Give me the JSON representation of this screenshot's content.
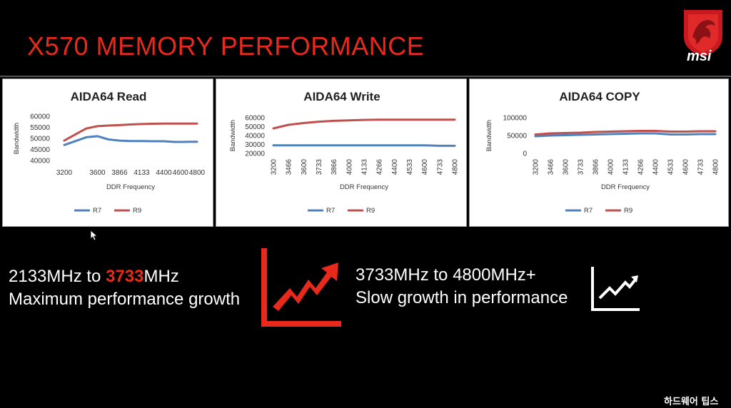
{
  "slide": {
    "title": "X570 MEMORY PERFORMANCE",
    "brand": "msi",
    "watermark": "하드웨어 팁스",
    "accent": "#e8291c"
  },
  "captions": {
    "left_line1_pre": "2133MHz to ",
    "left_line1_highlight": "3733",
    "left_line1_post": "MHz",
    "left_line2": "Maximum performance growth",
    "right_line1": "3733MHz to 4800MHz+",
    "right_line2": "Slow growth in performance"
  },
  "icons": {
    "growth": "red-rising-chart-arrow-icon",
    "slow": "white-rising-line-chart-icon"
  },
  "chart_data": [
    {
      "type": "line",
      "title": "AIDA64 Read",
      "xlabel": "DDR Frequency",
      "ylabel": "Bandwidth",
      "categories": [
        "3200",
        "3600",
        "3866",
        "4133",
        "4400",
        "4600",
        "4800"
      ],
      "x": [
        3200,
        3466,
        3600,
        3733,
        3866,
        4000,
        4133,
        4266,
        4400,
        4533,
        4600,
        4733,
        4800
      ],
      "series": [
        {
          "name": "R7",
          "color": "#4f81bd",
          "values": [
            47000,
            50500,
            51000,
            49500,
            49000,
            48800,
            48800,
            48700,
            48700,
            48400,
            48400,
            48500,
            48500
          ]
        },
        {
          "name": "R9",
          "color": "#c0504d",
          "values": [
            49000,
            54500,
            55500,
            55800,
            56000,
            56300,
            56500,
            56600,
            56700,
            56700,
            56700,
            56700,
            56700
          ]
        }
      ],
      "yticks": [
        "40000",
        "45000",
        "50000",
        "55000",
        "60000"
      ],
      "ylim": [
        40000,
        60000
      ],
      "grid": false,
      "legend": "bottom",
      "xlabels_rotated": false
    },
    {
      "type": "line",
      "title": "AIDA64 Write",
      "xlabel": "DDR Frequency",
      "ylabel": "Bandwidth",
      "categories": [
        "3200",
        "3466",
        "3600",
        "3733",
        "3866",
        "4000",
        "4133",
        "4266",
        "4400",
        "4533",
        "4600",
        "4733",
        "4800"
      ],
      "series": [
        {
          "name": "R7",
          "color": "#4f81bd",
          "values": [
            29000,
            29000,
            29000,
            29000,
            29000,
            29000,
            29000,
            29000,
            29000,
            29000,
            29000,
            28500,
            28500
          ]
        },
        {
          "name": "R9",
          "color": "#c0504d",
          "values": [
            48000,
            52000,
            54000,
            55500,
            56500,
            57000,
            57500,
            57800,
            57800,
            57800,
            57800,
            57800,
            57800
          ]
        }
      ],
      "yticks": [
        "20000",
        "30000",
        "40000",
        "50000",
        "60000"
      ],
      "ylim": [
        20000,
        60000
      ],
      "grid": false,
      "legend": "bottom",
      "xlabels_rotated": true
    },
    {
      "type": "line",
      "title": "AIDA64 COPY",
      "xlabel": "DDR Frequency",
      "ylabel": "Bandwidth",
      "categories": [
        "3200",
        "3466",
        "3600",
        "3733",
        "3866",
        "4000",
        "4133",
        "4266",
        "4400",
        "4533",
        "4600",
        "4733",
        "4800"
      ],
      "series": [
        {
          "name": "R7",
          "color": "#4f81bd",
          "values": [
            48000,
            50000,
            51000,
            52000,
            53000,
            54000,
            55000,
            56000,
            56000,
            53000,
            53000,
            54000,
            54000
          ]
        },
        {
          "name": "R9",
          "color": "#c0504d",
          "values": [
            53000,
            56000,
            57000,
            58000,
            60000,
            61000,
            62000,
            63000,
            63000,
            61000,
            61000,
            62000,
            62000
          ]
        }
      ],
      "yticks": [
        "0",
        "50000",
        "100000"
      ],
      "ylim": [
        0,
        100000
      ],
      "grid": false,
      "legend": "bottom",
      "xlabels_rotated": true
    }
  ]
}
